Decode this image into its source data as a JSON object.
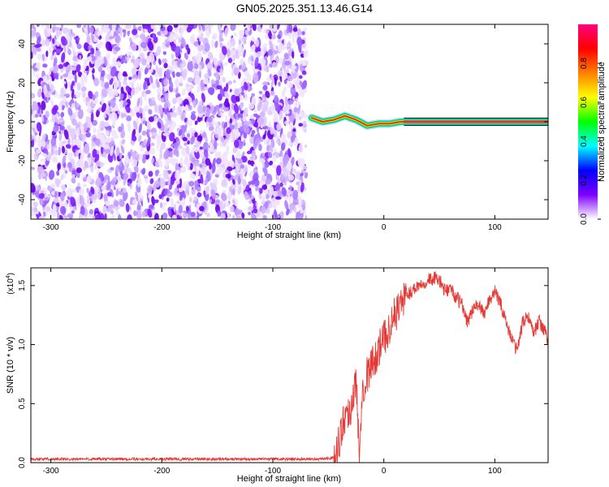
{
  "title": "GN05.2025.351.13.46.G14",
  "chart_data": [
    {
      "type": "heatmap",
      "xlabel": "Height of straight line (km)",
      "ylabel": "Frequency (Hz)",
      "xlim": [
        -318,
        148
      ],
      "ylim": [
        -50,
        50
      ],
      "xticks": [
        -300,
        -200,
        -100,
        0,
        100
      ],
      "yticks": [
        -40,
        -20,
        0,
        20,
        40
      ],
      "colorbar": {
        "label": "Normalized spectral amplitude",
        "range": [
          0,
          1
        ],
        "ticks": [
          "0.0",
          "0.2",
          "0.4",
          "0.6",
          "0.8"
        ],
        "colormap": [
          "#ffffff",
          "#7f00ff",
          "#0000ff",
          "#00ffff",
          "#00ff00",
          "#ffff00",
          "#ff8000",
          "#ff0000",
          "#ff0080"
        ]
      },
      "description_regions": [
        {
          "x_range": [
            -318,
            -70
          ],
          "content": "noise",
          "amplitude": [
            0.0,
            0.2
          ]
        },
        {
          "x_range": [
            -70,
            18
          ],
          "content": "signal line near 0 Hz",
          "amplitude": [
            0.3,
            1.0
          ]
        },
        {
          "x_range": [
            18,
            148
          ],
          "content": "signal line at 0 Hz",
          "amplitude": [
            1.0,
            1.0
          ]
        }
      ],
      "signal_frequency_hz": [
        {
          "x": -65,
          "y": 2
        },
        {
          "x": -55,
          "y": 0
        },
        {
          "x": -45,
          "y": 1
        },
        {
          "x": -35,
          "y": 3
        },
        {
          "x": -25,
          "y": 1
        },
        {
          "x": -15,
          "y": -2
        },
        {
          "x": -5,
          "y": -1
        },
        {
          "x": 5,
          "y": -1
        },
        {
          "x": 15,
          "y": 0
        },
        {
          "x": 148,
          "y": 0
        }
      ]
    },
    {
      "type": "line",
      "xlabel": "Height of straight line (km)",
      "ylabel": "SNR (10 * v/v)",
      "yscale_label": "(x10",
      "yscale_exponent": "4",
      "yscale_close": ")",
      "xlim": [
        -318,
        148
      ],
      "ylim": [
        0,
        1.65
      ],
      "xticks": [
        -300,
        -200,
        -100,
        0,
        100
      ],
      "yticks": [
        "0.0",
        "0.5",
        "1.0",
        "1.5"
      ],
      "series": [
        {
          "color": "#e53935",
          "x": [
            -318,
            -300,
            -250,
            -200,
            -150,
            -100,
            -60,
            -45,
            -40,
            -35,
            -30,
            -25,
            -22,
            -20,
            -15,
            -10,
            -5,
            0,
            5,
            10,
            15,
            20,
            25,
            30,
            35,
            40,
            45,
            50,
            55,
            60,
            65,
            70,
            75,
            80,
            85,
            90,
            95,
            100,
            105,
            110,
            115,
            120,
            125,
            130,
            135,
            140,
            145,
            148
          ],
          "y": [
            0.03,
            0.03,
            0.03,
            0.03,
            0.03,
            0.03,
            0.03,
            0.04,
            0.2,
            0.4,
            0.45,
            0.7,
            0.05,
            0.6,
            0.75,
            0.85,
            0.95,
            1.05,
            1.15,
            1.25,
            1.35,
            1.42,
            1.45,
            1.5,
            1.52,
            1.55,
            1.56,
            1.55,
            1.45,
            1.48,
            1.4,
            1.35,
            1.2,
            1.28,
            1.35,
            1.25,
            1.38,
            1.45,
            1.35,
            1.2,
            1.05,
            0.95,
            1.18,
            1.25,
            1.1,
            1.2,
            1.12,
            1.0
          ]
        }
      ]
    }
  ]
}
